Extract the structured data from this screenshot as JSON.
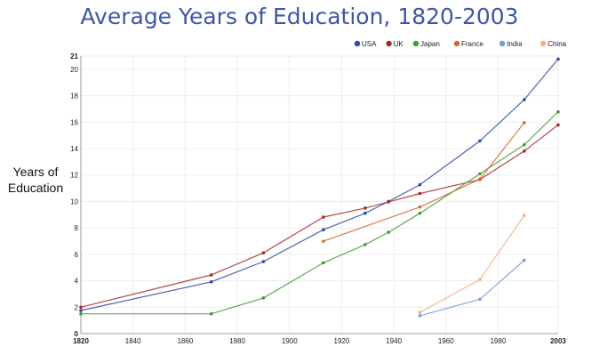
{
  "chart_data": {
    "type": "line",
    "title": "Average Years of Education, 1820-2003",
    "ylabel_lines": [
      "Years of",
      "Education"
    ],
    "xlim": [
      1820,
      2003
    ],
    "ylim": [
      0,
      21
    ],
    "x_ticks": [
      "1820",
      "1840",
      "1860",
      "1880",
      "1900",
      "1920",
      "1940",
      "1960",
      "1980",
      "2003"
    ],
    "x_tick_values": [
      1820,
      1840,
      1860,
      1880,
      1900,
      1920,
      1940,
      1960,
      1980,
      2003
    ],
    "y_ticks": [
      "0",
      "2",
      "4",
      "6",
      "8",
      "10",
      "12",
      "14",
      "16",
      "18",
      "20",
      "21"
    ],
    "y_tick_values": [
      0,
      2,
      4,
      6,
      8,
      10,
      12,
      14,
      16,
      18,
      20,
      21
    ],
    "grid": true,
    "legend_position": "top-right",
    "series": [
      {
        "name": "USA",
        "color": "#2e47a3",
        "points": [
          [
            1820,
            1.75
          ],
          [
            1870,
            3.92
          ],
          [
            1890,
            5.45
          ],
          [
            1913,
            7.86
          ],
          [
            1929,
            9.11
          ],
          [
            1938,
            10.0
          ],
          [
            1950,
            11.27
          ],
          [
            1973,
            14.58
          ],
          [
            1990,
            17.7
          ],
          [
            2003,
            20.77
          ]
        ]
      },
      {
        "name": "UK",
        "color": "#a52a2a",
        "points": [
          [
            1820,
            2.0
          ],
          [
            1870,
            4.44
          ],
          [
            1890,
            6.11
          ],
          [
            1913,
            8.82
          ],
          [
            1929,
            9.5
          ],
          [
            1938,
            9.97
          ],
          [
            1950,
            10.6
          ],
          [
            1973,
            11.66
          ],
          [
            1990,
            13.81
          ],
          [
            2003,
            15.79
          ]
        ]
      },
      {
        "name": "Japan",
        "color": "#3f9b35",
        "points": [
          [
            1820,
            1.5
          ],
          [
            1870,
            1.5
          ],
          [
            1890,
            2.7
          ],
          [
            1913,
            5.36
          ],
          [
            1929,
            6.74
          ],
          [
            1938,
            7.67
          ],
          [
            1950,
            9.11
          ],
          [
            1973,
            12.09
          ],
          [
            1990,
            14.29
          ],
          [
            2003,
            16.78
          ]
        ]
      },
      {
        "name": "France",
        "color": "#d4682b",
        "points": [
          [
            1913,
            6.99
          ],
          [
            1950,
            9.58
          ],
          [
            1973,
            11.69
          ],
          [
            1990,
            15.96
          ]
        ]
      },
      {
        "name": "India",
        "color": "#7d97dc",
        "points": [
          [
            1950,
            1.35
          ],
          [
            1973,
            2.6
          ],
          [
            1990,
            5.55
          ]
        ]
      },
      {
        "name": "China",
        "color": "#efb088",
        "points": [
          [
            1950,
            1.6
          ],
          [
            1973,
            4.09
          ],
          [
            1990,
            8.95
          ]
        ]
      }
    ]
  }
}
